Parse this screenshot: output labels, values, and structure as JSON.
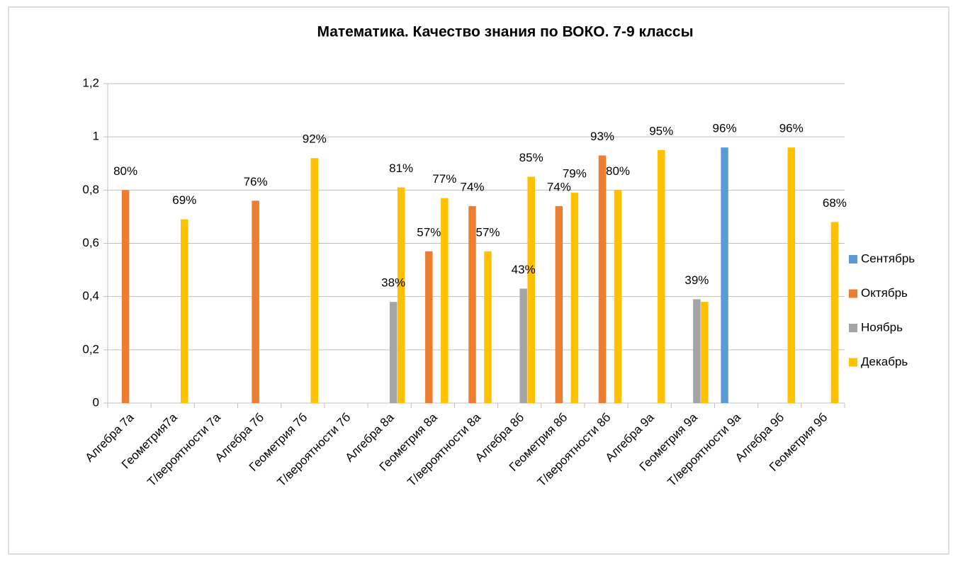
{
  "chart_data": {
    "type": "bar",
    "title": "Математика. Качество знания по ВОКО. 7-9 классы",
    "categories": [
      "Алгебра 7а",
      "Геометрия7а",
      "Т/вероятности 7а",
      "Алгебра 7б",
      "Геометрия 7б",
      "Т/вероятности 7б",
      "Алгебра 8а",
      "Геометрия 8а",
      "Т/вероятности 8а",
      "Алгебра 8б",
      "Геометрия 8б",
      "Т/вероятности 8б",
      "Алгебра 9а",
      "Геометрия 9а",
      "Т/вероятности 9а",
      "Алгебра 9б",
      "Геометрия 9б"
    ],
    "series": [
      {
        "name": "Сентябрь",
        "color": "#5b9bd5",
        "values": [
          null,
          null,
          null,
          null,
          null,
          null,
          null,
          null,
          null,
          null,
          null,
          null,
          null,
          null,
          0.96,
          null,
          null
        ],
        "value_labels": [
          null,
          null,
          null,
          null,
          null,
          null,
          null,
          null,
          null,
          null,
          null,
          null,
          null,
          null,
          "96%",
          null,
          null
        ]
      },
      {
        "name": "Октябрь",
        "color": "#ed7d31",
        "values": [
          0.8,
          null,
          null,
          0.76,
          null,
          null,
          null,
          0.57,
          0.74,
          null,
          0.74,
          0.93,
          null,
          null,
          null,
          null,
          null
        ],
        "value_labels": [
          "80%",
          null,
          null,
          "76%",
          null,
          null,
          null,
          "57%",
          "74%",
          null,
          "74%",
          "93%",
          null,
          null,
          null,
          null,
          null
        ]
      },
      {
        "name": "Ноябрь",
        "color": "#a5a5a5",
        "values": [
          null,
          null,
          null,
          null,
          null,
          null,
          0.38,
          null,
          null,
          0.43,
          null,
          null,
          null,
          0.39,
          null,
          null,
          null
        ],
        "value_labels": [
          null,
          null,
          null,
          null,
          null,
          null,
          "38%",
          null,
          null,
          "43%",
          null,
          null,
          null,
          "39%",
          null,
          null,
          null
        ]
      },
      {
        "name": "Декабрь",
        "color": "#ffc000",
        "values": [
          null,
          0.69,
          null,
          null,
          0.92,
          null,
          0.81,
          0.77,
          0.57,
          0.85,
          0.79,
          0.8,
          0.95,
          0.38,
          null,
          0.96,
          0.68
        ],
        "value_labels": [
          null,
          "69%",
          null,
          null,
          "92%",
          null,
          "81%",
          "77%",
          "57%",
          "85%",
          "79%",
          "80%",
          "95%",
          null,
          null,
          "96%",
          "68%"
        ]
      }
    ],
    "ylim": [
      0,
      1.2
    ],
    "yticks": [
      0,
      {
        "value": 0.2,
        "label": "0,2"
      },
      {
        "value": 0.4,
        "label": "0,4"
      },
      {
        "value": 0.6,
        "label": "0,6"
      },
      {
        "value": 0.8,
        "label": "0,8"
      },
      1,
      {
        "value": 1.2,
        "label": "1,2"
      }
    ],
    "grid": true,
    "legend": "right"
  }
}
